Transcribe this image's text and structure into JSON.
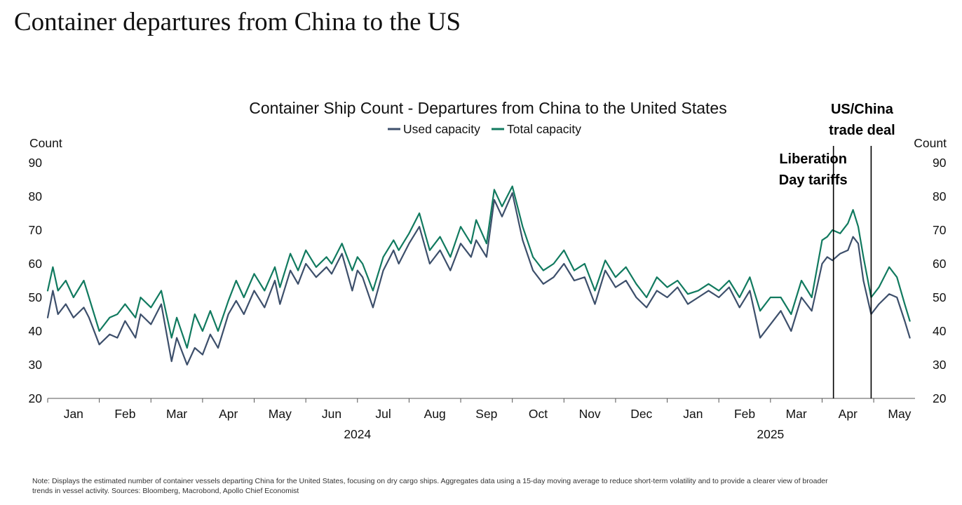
{
  "page_title": "Container departures from China to the US",
  "note": "Note: Displays the estimated number of container vessels departing China for the United States, focusing on dry cargo ships. Aggregates data using a 15-day moving average to reduce short-term volatility and to provide a clearer view of broader trends in vessel activity. Sources: Bloomberg, Macrobond, Apollo Chief Economist",
  "chart_data": {
    "type": "line",
    "title": "Container Ship Count - Departures from China to the United States",
    "ylabel_left": "Count",
    "ylabel_right": "Count",
    "ylim": [
      20,
      90
    ],
    "yticks": [
      20,
      30,
      40,
      50,
      60,
      70,
      80,
      90
    ],
    "x_range_months": [
      0,
      16.8
    ],
    "month_labels": [
      "Jan",
      "Feb",
      "Mar",
      "Apr",
      "May",
      "Jun",
      "Jul",
      "Aug",
      "Sep",
      "Oct",
      "Nov",
      "Dec",
      "Jan",
      "Feb",
      "Mar",
      "Apr",
      "May"
    ],
    "year_labels": [
      {
        "label": "2024",
        "month_center": 6
      },
      {
        "label": "2025",
        "month_center": 14
      }
    ],
    "legend": [
      "Used capacity",
      "Total capacity"
    ],
    "colors": {
      "used": "#3d4f6b",
      "total": "#117a5f",
      "axis": "#555555",
      "text": "#111111"
    },
    "annotations": [
      {
        "label_lines": [
          "Liberation",
          "Day tariffs"
        ],
        "x_month": 15.22
      },
      {
        "label_lines": [
          "US/China",
          "trade deal"
        ],
        "x_month": 15.95
      }
    ],
    "series": [
      {
        "name": "Total capacity",
        "x": [
          0,
          0.1,
          0.2,
          0.35,
          0.5,
          0.7,
          0.8,
          1.0,
          1.2,
          1.35,
          1.5,
          1.7,
          1.8,
          2.0,
          2.2,
          2.4,
          2.5,
          2.7,
          2.85,
          3.0,
          3.15,
          3.3,
          3.5,
          3.65,
          3.8,
          4.0,
          4.2,
          4.4,
          4.5,
          4.7,
          4.85,
          5.0,
          5.2,
          5.4,
          5.5,
          5.7,
          5.9,
          6.0,
          6.1,
          6.3,
          6.5,
          6.7,
          6.8,
          7.0,
          7.2,
          7.4,
          7.6,
          7.8,
          8.0,
          8.2,
          8.3,
          8.5,
          8.65,
          8.8,
          9.0,
          9.2,
          9.4,
          9.6,
          9.8,
          10.0,
          10.2,
          10.4,
          10.6,
          10.8,
          11.0,
          11.2,
          11.4,
          11.6,
          11.8,
          12.0,
          12.2,
          12.4,
          12.6,
          12.8,
          13.0,
          13.2,
          13.4,
          13.6,
          13.8,
          14.0,
          14.2,
          14.4,
          14.6,
          14.8,
          15.0,
          15.1,
          15.2,
          15.35,
          15.5,
          15.6,
          15.7,
          15.8,
          15.95,
          16.1,
          16.3,
          16.45,
          16.6,
          16.7
        ],
        "values": [
          52,
          59,
          52,
          55,
          50,
          55,
          50,
          40,
          44,
          45,
          48,
          44,
          50,
          47,
          52,
          38,
          44,
          35,
          45,
          40,
          46,
          40,
          49,
          55,
          50,
          57,
          52,
          59,
          53,
          63,
          58,
          64,
          59,
          62,
          60,
          66,
          58,
          62,
          60,
          52,
          62,
          67,
          64,
          69,
          75,
          64,
          68,
          62,
          71,
          66,
          73,
          66,
          82,
          77,
          83,
          71,
          62,
          58,
          60,
          64,
          58,
          60,
          52,
          61,
          56,
          59,
          54,
          50,
          56,
          53,
          55,
          51,
          52,
          54,
          52,
          55,
          50,
          56,
          46,
          50,
          50,
          45,
          55,
          50,
          67,
          68,
          70,
          69,
          72,
          76,
          71,
          62,
          50,
          53,
          59,
          56,
          48,
          43
        ]
      },
      {
        "name": "Used capacity",
        "x": [
          0,
          0.1,
          0.2,
          0.35,
          0.5,
          0.7,
          0.8,
          1.0,
          1.2,
          1.35,
          1.5,
          1.7,
          1.8,
          2.0,
          2.2,
          2.4,
          2.5,
          2.7,
          2.85,
          3.0,
          3.15,
          3.3,
          3.5,
          3.65,
          3.8,
          4.0,
          4.2,
          4.4,
          4.5,
          4.7,
          4.85,
          5.0,
          5.2,
          5.4,
          5.5,
          5.7,
          5.9,
          6.0,
          6.1,
          6.3,
          6.5,
          6.7,
          6.8,
          7.0,
          7.2,
          7.4,
          7.6,
          7.8,
          8.0,
          8.2,
          8.3,
          8.5,
          8.65,
          8.8,
          9.0,
          9.2,
          9.4,
          9.6,
          9.8,
          10.0,
          10.2,
          10.4,
          10.6,
          10.8,
          11.0,
          11.2,
          11.4,
          11.6,
          11.8,
          12.0,
          12.2,
          12.4,
          12.6,
          12.8,
          13.0,
          13.2,
          13.4,
          13.6,
          13.8,
          14.0,
          14.2,
          14.4,
          14.6,
          14.8,
          15.0,
          15.1,
          15.2,
          15.35,
          15.5,
          15.6,
          15.7,
          15.8,
          15.95,
          16.1,
          16.3,
          16.45,
          16.6,
          16.7
        ],
        "values": [
          44,
          52,
          45,
          48,
          44,
          47,
          44,
          36,
          39,
          38,
          43,
          38,
          45,
          42,
          48,
          31,
          38,
          30,
          35,
          33,
          39,
          35,
          45,
          49,
          45,
          52,
          47,
          55,
          48,
          58,
          54,
          60,
          56,
          59,
          57,
          63,
          52,
          58,
          56,
          47,
          58,
          64,
          60,
          66,
          71,
          60,
          64,
          58,
          66,
          62,
          67,
          62,
          79,
          74,
          81,
          67,
          58,
          54,
          56,
          60,
          55,
          56,
          48,
          58,
          53,
          55,
          50,
          47,
          52,
          50,
          53,
          48,
          50,
          52,
          50,
          53,
          47,
          52,
          38,
          42,
          46,
          40,
          50,
          46,
          60,
          62,
          61,
          63,
          64,
          68,
          66,
          55,
          45,
          48,
          51,
          50,
          43,
          38
        ]
      }
    ]
  }
}
